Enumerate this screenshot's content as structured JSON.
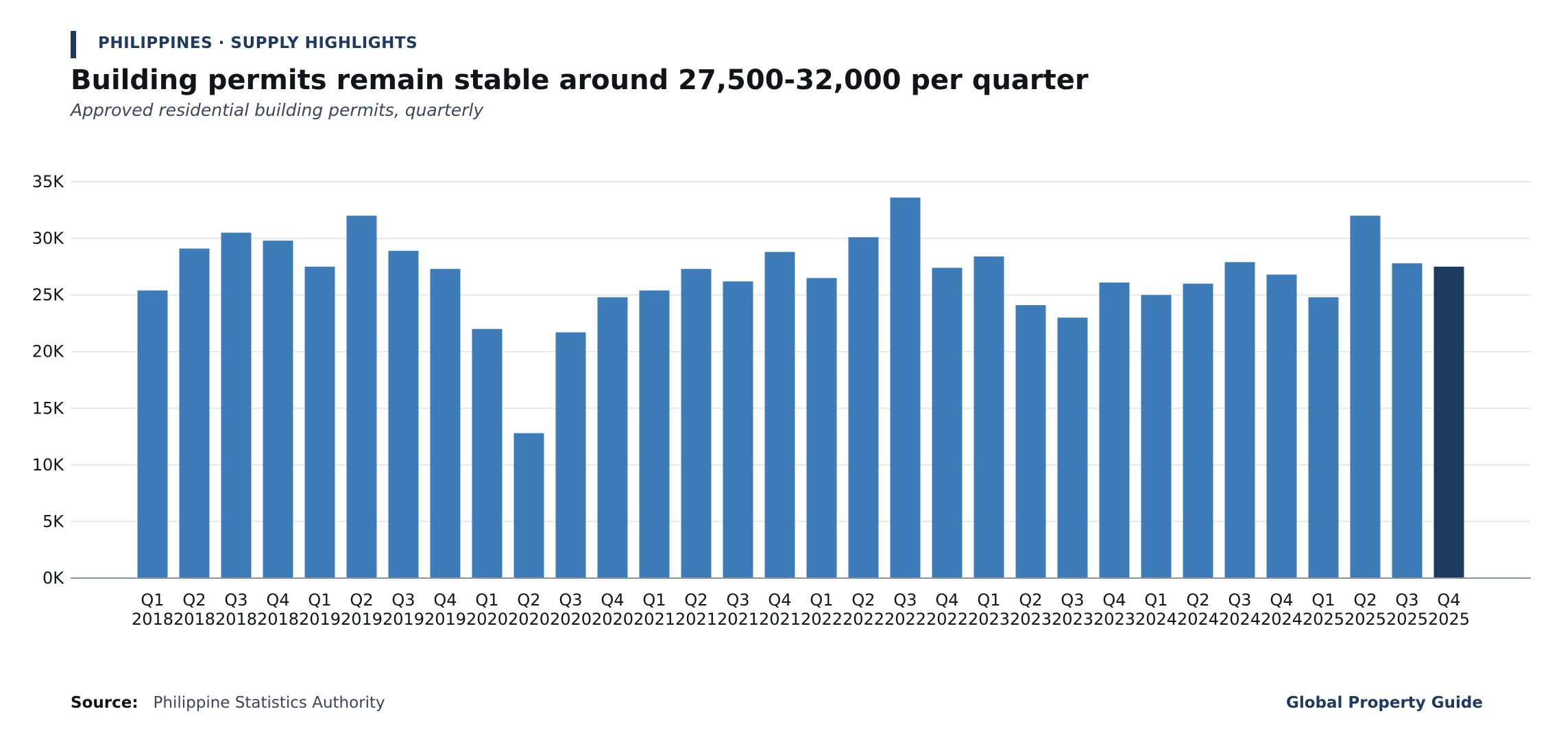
{
  "header": {
    "kicker": "PHILIPPINES · SUPPLY HIGHLIGHTS",
    "title": "Building permits remain stable around 27,500-32,000 per quarter",
    "subtitle": "Approved residential building permits, quarterly"
  },
  "footer": {
    "source_label": "Source:",
    "source_text": "Philippine Statistics Authority",
    "brand": "Global Property Guide"
  },
  "colors": {
    "bar": "#3d7cb8",
    "bar_highlight": "#1f3a5f",
    "grid": "#e6e8ea",
    "axis": "#8a95a3"
  },
  "chart_data": {
    "type": "bar",
    "title": "Building permits remain stable around 27,500-32,000 per quarter",
    "subtitle": "Approved residential building permits, quarterly",
    "xlabel": "",
    "ylabel": "",
    "ylim": [
      0,
      35000
    ],
    "yticks": [
      0,
      5000,
      10000,
      15000,
      20000,
      25000,
      30000,
      35000
    ],
    "ytick_labels": [
      "0K",
      "5K",
      "10K",
      "15K",
      "20K",
      "25K",
      "30K",
      "35K"
    ],
    "grid": true,
    "highlight_last": true,
    "categories": [
      [
        "Q1",
        "2018"
      ],
      [
        "Q2",
        "2018"
      ],
      [
        "Q3",
        "2018"
      ],
      [
        "Q4",
        "2018"
      ],
      [
        "Q1",
        "2019"
      ],
      [
        "Q2",
        "2019"
      ],
      [
        "Q3",
        "2019"
      ],
      [
        "Q4",
        "2019"
      ],
      [
        "Q1",
        "2020"
      ],
      [
        "Q2",
        "2020"
      ],
      [
        "Q3",
        "2020"
      ],
      [
        "Q4",
        "2020"
      ],
      [
        "Q1",
        "2021"
      ],
      [
        "Q2",
        "2021"
      ],
      [
        "Q3",
        "2021"
      ],
      [
        "Q4",
        "2021"
      ],
      [
        "Q1",
        "2022"
      ],
      [
        "Q2",
        "2022"
      ],
      [
        "Q3",
        "2022"
      ],
      [
        "Q4",
        "2022"
      ],
      [
        "Q1",
        "2023"
      ],
      [
        "Q2",
        "2023"
      ],
      [
        "Q3",
        "2023"
      ],
      [
        "Q4",
        "2023"
      ],
      [
        "Q1",
        "2024"
      ],
      [
        "Q2",
        "2024"
      ],
      [
        "Q3",
        "2024"
      ],
      [
        "Q4",
        "2024"
      ],
      [
        "Q1",
        "2025"
      ],
      [
        "Q2",
        "2025"
      ],
      [
        "Q3",
        "2025"
      ],
      [
        "Q4",
        "2025"
      ]
    ],
    "values": [
      25400,
      29100,
      30500,
      29800,
      27500,
      32000,
      28900,
      27300,
      22000,
      12800,
      21700,
      24800,
      25400,
      27300,
      26200,
      28800,
      26500,
      30100,
      33600,
      27400,
      28400,
      24100,
      23000,
      26100,
      25000,
      26000,
      27900,
      26800,
      24800,
      32000,
      27800,
      27500
    ]
  }
}
